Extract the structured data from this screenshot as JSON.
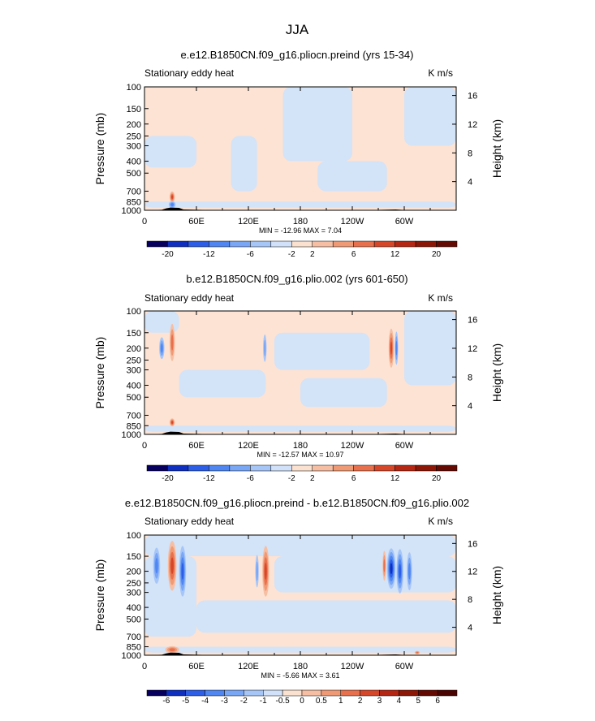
{
  "main_title": "JJA",
  "colors": {
    "background_field": "#fde3d3",
    "neg_field": "#d3e3f8",
    "topography": "#000000",
    "frame": "#000000"
  },
  "chart_data": [
    {
      "type": "heatmap",
      "title": "e.e12.B1850CN.f09_g16.pliocn.preind (yrs 15-34)",
      "left_label": "Stationary eddy heat",
      "right_label": "K m/s",
      "ylabel": "Pressure (mb)",
      "ylabel_right": "Height (km)",
      "x_ticks": [
        "0",
        "60E",
        "120E",
        "180",
        "120W",
        "60W"
      ],
      "x_tick_lon": [
        0,
        60,
        120,
        180,
        240,
        300
      ],
      "xlim": [
        0,
        360
      ],
      "y_ticks": [
        "100",
        "150",
        "200",
        "250",
        "300",
        "400",
        "500",
        "700",
        "850",
        "1000"
      ],
      "y_tick_p": [
        100,
        150,
        200,
        250,
        300,
        400,
        500,
        700,
        850,
        1000
      ],
      "ylim": [
        1000,
        100
      ],
      "height_ticks": [
        "16",
        "12",
        "8",
        "4"
      ],
      "height_tick_km": [
        16,
        12,
        8,
        4
      ],
      "stats": "MIN = -12.96   MAX =   7.04",
      "min": -12.96,
      "max": 7.04,
      "colorbar_labels": [
        "-20",
        "-12",
        "-6",
        "-2",
        "2",
        "6",
        "12",
        "20"
      ],
      "blobs": [
        {
          "lon": 32,
          "p": 780,
          "dlon": 3,
          "dp": 80,
          "v": 4
        },
        {
          "lon": 32,
          "p": 900,
          "dlon": 4,
          "dp": 60,
          "v": -3
        }
      ],
      "neg_regions": [
        {
          "lon": [
            160,
            240
          ],
          "p": [
            100,
            400
          ]
        },
        {
          "lon": [
            300,
            360
          ],
          "p": [
            100,
            300
          ]
        },
        {
          "lon": [
            0,
            60
          ],
          "p": [
            250,
            450
          ]
        },
        {
          "lon": [
            100,
            130
          ],
          "p": [
            250,
            700
          ]
        },
        {
          "lon": [
            200,
            280
          ],
          "p": [
            400,
            700
          ]
        },
        {
          "lon": [
            0,
            360
          ],
          "p": [
            850,
            950
          ]
        }
      ]
    },
    {
      "type": "heatmap",
      "title": "b.e12.B1850CN.f09_g16.plio.002 (yrs 601-650)",
      "left_label": "Stationary eddy heat",
      "right_label": "K m/s",
      "ylabel": "Pressure (mb)",
      "ylabel_right": "Height (km)",
      "x_ticks": [
        "0",
        "60E",
        "120E",
        "180",
        "120W",
        "60W"
      ],
      "x_tick_lon": [
        0,
        60,
        120,
        180,
        240,
        300
      ],
      "xlim": [
        0,
        360
      ],
      "y_ticks": [
        "100",
        "150",
        "200",
        "250",
        "300",
        "400",
        "500",
        "700",
        "850",
        "1000"
      ],
      "y_tick_p": [
        100,
        150,
        200,
        250,
        300,
        400,
        500,
        700,
        850,
        1000
      ],
      "ylim": [
        1000,
        100
      ],
      "height_ticks": [
        "16",
        "12",
        "8",
        "4"
      ],
      "height_tick_km": [
        16,
        12,
        8,
        4
      ],
      "stats": "MIN = -12.57   MAX =   10.97",
      "min": -12.57,
      "max": 10.97,
      "colorbar_labels": [
        "-20",
        "-12",
        "-6",
        "-2",
        "2",
        "6",
        "12",
        "20"
      ],
      "blobs": [
        {
          "lon": 32,
          "p": 180,
          "dlon": 3,
          "dp": 60,
          "v": 3
        },
        {
          "lon": 20,
          "p": 200,
          "dlon": 3,
          "dp": 40,
          "v": -3
        },
        {
          "lon": 139,
          "p": 200,
          "dlon": 2,
          "dp": 50,
          "v": -2
        },
        {
          "lon": 285,
          "p": 200,
          "dlon": 3,
          "dp": 70,
          "v": 4
        },
        {
          "lon": 291,
          "p": 200,
          "dlon": 2,
          "dp": 60,
          "v": -3
        },
        {
          "lon": 32,
          "p": 800,
          "dlon": 3,
          "dp": 60,
          "v": 5
        }
      ],
      "neg_regions": [
        {
          "lon": [
            0,
            40
          ],
          "p": [
            100,
            150
          ]
        },
        {
          "lon": [
            150,
            260
          ],
          "p": [
            150,
            300
          ]
        },
        {
          "lon": [
            40,
            140
          ],
          "p": [
            300,
            500
          ]
        },
        {
          "lon": [
            180,
            280
          ],
          "p": [
            350,
            600
          ]
        },
        {
          "lon": [
            0,
            360
          ],
          "p": [
            850,
            950
          ]
        },
        {
          "lon": [
            300,
            360
          ],
          "p": [
            100,
            400
          ]
        }
      ]
    },
    {
      "type": "heatmap",
      "title": "e.e12.B1850CN.f09_g16.pliocn.preind - b.e12.B1850CN.f09_g16.plio.002",
      "left_label": "Stationary eddy heat",
      "right_label": "K m/s",
      "ylabel": "Pressure (mb)",
      "ylabel_right": "Height (km)",
      "x_ticks": [
        "0",
        "60E",
        "120E",
        "180",
        "120W",
        "60W"
      ],
      "x_tick_lon": [
        0,
        60,
        120,
        180,
        240,
        300
      ],
      "xlim": [
        0,
        360
      ],
      "y_ticks": [
        "100",
        "150",
        "200",
        "250",
        "300",
        "400",
        "500",
        "700",
        "850",
        "1000"
      ],
      "y_tick_p": [
        100,
        150,
        200,
        250,
        300,
        400,
        500,
        700,
        850,
        1000
      ],
      "ylim": [
        1000,
        100
      ],
      "height_ticks": [
        "16",
        "12",
        "8",
        "4"
      ],
      "height_tick_km": [
        16,
        12,
        8,
        4
      ],
      "stats": "MIN = -5.66   MAX =   3.61",
      "min": -5.66,
      "max": 3.61,
      "colorbar_labels": [
        "-6",
        "-5",
        "-4",
        "-3",
        "-2",
        "-1",
        "-0.5",
        "0",
        "0.5",
        "1",
        "2",
        "3",
        "4",
        "5",
        "6"
      ],
      "blobs": [
        {
          "lon": 14,
          "p": 180,
          "dlon": 4,
          "dp": 60,
          "v": -3
        },
        {
          "lon": 32,
          "p": 180,
          "dlon": 5,
          "dp": 80,
          "v": 4
        },
        {
          "lon": 44,
          "p": 200,
          "dlon": 4,
          "dp": 90,
          "v": -4
        },
        {
          "lon": 140,
          "p": 200,
          "dlon": 4,
          "dp": 90,
          "v": 4
        },
        {
          "lon": 130,
          "p": 200,
          "dlon": 2,
          "dp": 60,
          "v": -2
        },
        {
          "lon": 285,
          "p": 190,
          "dlon": 5,
          "dp": 70,
          "v": -5
        },
        {
          "lon": 295,
          "p": 200,
          "dlon": 4,
          "dp": 80,
          "v": -4
        },
        {
          "lon": 277,
          "p": 180,
          "dlon": 2,
          "dp": 50,
          "v": 3
        },
        {
          "lon": 306,
          "p": 200,
          "dlon": 3,
          "dp": 70,
          "v": -3
        },
        {
          "lon": 32,
          "p": 900,
          "dlon": 8,
          "dp": 60,
          "v": 3
        },
        {
          "lon": 315,
          "p": 950,
          "dlon": 3,
          "dp": 30,
          "v": 3
        }
      ],
      "neg_regions": [
        {
          "lon": [
            0,
            360
          ],
          "p": [
            100,
            150
          ]
        },
        {
          "lon": [
            150,
            360
          ],
          "p": [
            150,
            300
          ]
        },
        {
          "lon": [
            60,
            360
          ],
          "p": [
            350,
            650
          ]
        },
        {
          "lon": [
            0,
            360
          ],
          "p": [
            850,
            950
          ]
        },
        {
          "lon": [
            0,
            60
          ],
          "p": [
            150,
            700
          ]
        }
      ]
    }
  ],
  "colorbar_colors_12": [
    "#07005e",
    "#0e2fbf",
    "#2c5ee8",
    "#4f86f1",
    "#79a6f5",
    "#a7c6f8",
    "#d1e1f9",
    "#fbe2d0",
    "#f6bea3",
    "#f09a75",
    "#e8704c",
    "#d6472a",
    "#b62713",
    "#8c1706",
    "#640a03"
  ],
  "colorbar_colors_3": [
    "#07005e",
    "#0e2fbf",
    "#2c5ee8",
    "#4f86f1",
    "#79a6f5",
    "#a7c6f8",
    "#d1e1f9",
    "#fbe2d0",
    "#f6bea3",
    "#f09a75",
    "#e8704c",
    "#d6472a",
    "#b62713",
    "#8c1706",
    "#640a03",
    "#4a0502"
  ]
}
